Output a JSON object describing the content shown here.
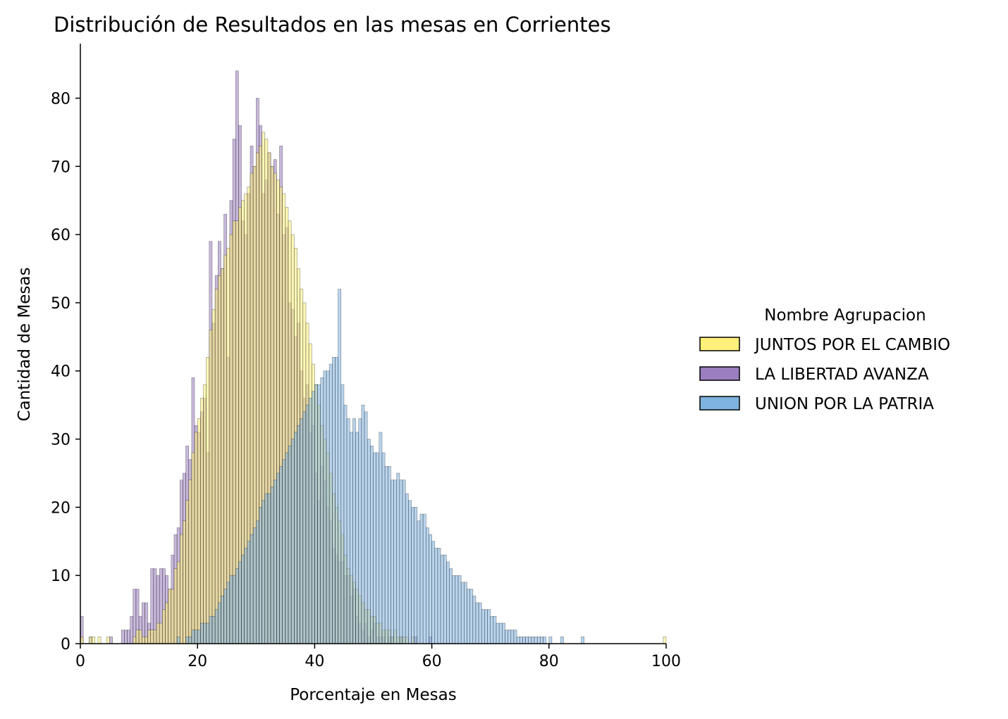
{
  "chart_data": {
    "type": "histogram",
    "title": "Distribución de Resultados en las mesas en Corrientes",
    "xlabel": "Porcentaje en Mesas",
    "ylabel": "Cantidad de Mesas",
    "xlim": [
      0,
      100
    ],
    "ylim": [
      0,
      88
    ],
    "x_ticks": [
      0,
      20,
      40,
      60,
      80,
      100
    ],
    "y_ticks": [
      0,
      10,
      20,
      30,
      40,
      50,
      60,
      70,
      80
    ],
    "grid": false,
    "bin_start": 0,
    "bin_width": 0.5,
    "legend": {
      "title": "Nombre Agrupacion",
      "placement": "right-outside"
    },
    "series": [
      {
        "name": "LA LIBERTAD AVANZA",
        "color": "#9b7ebf",
        "values": [
          4,
          0,
          0,
          1,
          0,
          0,
          0,
          0,
          0,
          0,
          1,
          0,
          0,
          0,
          2,
          2,
          2,
          4,
          8,
          8,
          4,
          6,
          6,
          3,
          11,
          11,
          10,
          11,
          11,
          10,
          8,
          13,
          16,
          17,
          24,
          25,
          29,
          27,
          39,
          32,
          31,
          34,
          36,
          28,
          59,
          47,
          54,
          59,
          55,
          63,
          42,
          65,
          74,
          84,
          76,
          62,
          60,
          66,
          73,
          70,
          80,
          76,
          66,
          68,
          72,
          70,
          71,
          63,
          73,
          60,
          61,
          50,
          49,
          45,
          47,
          40,
          36,
          38,
          31,
          32,
          25,
          21,
          26,
          24,
          20,
          18,
          14,
          13,
          12,
          12,
          10,
          10,
          7,
          8,
          4,
          3,
          2,
          3,
          1,
          2,
          3,
          1,
          1,
          1,
          0,
          1,
          1,
          0,
          0,
          1,
          0,
          0,
          0,
          0,
          1,
          0,
          0,
          0,
          0,
          1
        ]
      },
      {
        "name": "JUNTOS POR EL CAMBIO",
        "color": "#fff07a",
        "values": [
          1,
          0,
          0,
          1,
          1,
          0,
          1,
          0,
          0,
          1,
          0,
          0,
          0,
          0,
          0,
          0,
          0,
          0,
          1,
          2,
          2,
          1,
          1,
          2,
          2,
          2,
          3,
          3,
          5,
          6,
          8,
          8,
          11,
          12,
          16,
          18,
          21,
          24,
          28,
          31,
          33,
          36,
          38,
          42,
          46,
          49,
          52,
          54,
          55,
          57,
          58,
          60,
          62,
          62,
          64,
          65,
          66,
          67,
          69,
          70,
          72,
          73,
          75,
          74,
          72,
          70,
          69,
          68,
          67,
          66,
          64,
          62,
          60,
          58,
          55,
          52,
          50,
          47,
          44,
          41,
          38,
          35,
          32,
          30,
          28,
          25,
          22,
          20,
          18,
          16,
          13,
          11,
          10,
          9,
          8,
          7,
          6,
          5,
          5,
          4,
          4,
          3,
          3,
          2,
          2,
          2,
          1,
          2,
          1,
          1,
          1,
          1,
          0,
          1,
          0,
          0,
          0,
          0,
          0,
          0,
          0,
          0,
          0,
          0,
          0,
          0,
          0,
          0,
          0,
          0,
          0,
          0,
          0,
          0,
          0,
          0,
          0,
          0,
          0,
          0,
          0,
          0,
          0,
          0,
          0,
          0,
          0,
          0,
          0,
          0,
          0,
          0,
          0,
          0,
          0,
          0,
          0,
          0,
          0,
          0,
          0,
          0,
          0,
          0,
          0,
          0,
          0,
          0,
          0,
          0,
          0,
          0,
          0,
          0,
          0,
          0,
          0,
          0,
          0,
          0,
          0,
          0,
          0,
          0,
          0,
          0,
          0,
          0,
          0,
          0,
          0,
          0,
          0,
          0,
          0,
          0,
          0,
          0,
          0,
          1
        ]
      },
      {
        "name": "UNION POR LA PATRIA",
        "color": "#7fb3e0",
        "values": [
          0,
          0,
          0,
          0,
          0,
          0,
          0,
          0,
          0,
          0,
          0,
          0,
          0,
          0,
          0,
          0,
          0,
          0,
          0,
          0,
          0,
          0,
          0,
          0,
          0,
          0,
          0,
          0,
          0,
          0,
          0,
          0,
          0,
          1,
          0,
          0,
          1,
          1,
          2,
          2,
          2,
          3,
          3,
          3,
          4,
          4,
          5,
          6,
          7,
          8,
          9,
          10,
          10,
          11,
          12,
          13,
          14,
          15,
          16,
          17,
          18,
          20,
          21,
          22,
          22,
          23,
          24,
          25,
          26,
          27,
          28,
          29,
          30,
          31,
          32,
          33,
          34,
          35,
          36,
          37,
          38,
          38,
          39,
          40,
          40,
          41,
          42,
          42,
          52,
          38,
          35,
          33,
          31,
          33,
          31,
          33,
          35,
          34,
          30,
          29,
          28,
          28,
          31,
          28,
          26,
          26,
          24,
          24,
          25,
          24,
          24,
          22,
          21,
          20,
          20,
          18,
          19,
          19,
          17,
          16,
          15,
          14,
          14,
          13,
          13,
          12,
          11,
          10,
          10,
          10,
          9,
          9,
          8,
          8,
          7,
          6,
          6,
          5,
          5,
          5,
          4,
          4,
          3,
          3,
          3,
          2,
          2,
          2,
          2,
          1,
          1,
          1,
          1,
          1,
          1,
          1,
          1,
          1,
          1,
          0,
          1,
          0,
          0,
          0,
          1,
          0,
          0,
          0,
          0,
          0,
          0,
          1
        ]
      }
    ]
  }
}
